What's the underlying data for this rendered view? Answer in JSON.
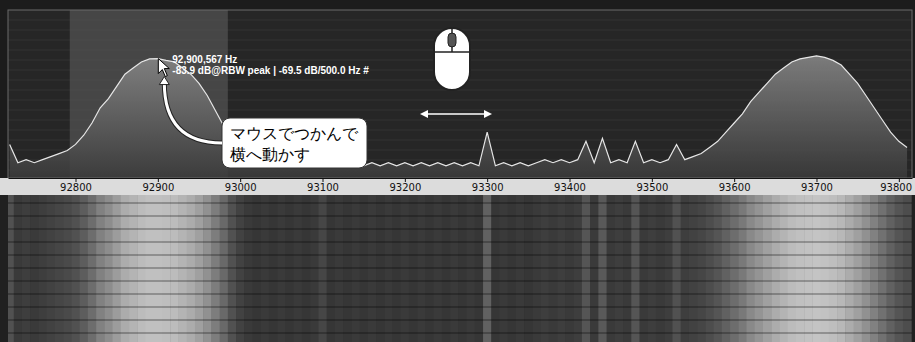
{
  "chart_data": {
    "type": "line",
    "color": "#e6e6e6",
    "tick_labels": "x",
    "xlim": [
      92718,
      93816
    ],
    "xticks": [
      92800,
      92900,
      93000,
      93100,
      93200,
      93300,
      93400,
      93500,
      93600,
      93700,
      93800
    ],
    "ylim": [
      -123,
      -68
    ],
    "selection": [
      92793,
      92985
    ],
    "x": [
      92720,
      92730,
      92740,
      92750,
      92760,
      92770,
      92780,
      92790,
      92800,
      92810,
      92820,
      92830,
      92840,
      92850,
      92860,
      92870,
      92880,
      92890,
      92900,
      92910,
      92920,
      92930,
      92940,
      92950,
      92960,
      92970,
      92980,
      92990,
      93000,
      93010,
      93020,
      93030,
      93040,
      93050,
      93060,
      93070,
      93080,
      93090,
      93100,
      93110,
      93120,
      93130,
      93140,
      93150,
      93160,
      93170,
      93180,
      93190,
      93200,
      93210,
      93220,
      93230,
      93240,
      93250,
      93260,
      93270,
      93280,
      93290,
      93300,
      93310,
      93320,
      93330,
      93340,
      93350,
      93360,
      93370,
      93380,
      93390,
      93400,
      93410,
      93420,
      93430,
      93440,
      93450,
      93460,
      93470,
      93480,
      93490,
      93500,
      93510,
      93520,
      93530,
      93540,
      93550,
      93560,
      93570,
      93580,
      93590,
      93600,
      93610,
      93620,
      93630,
      93640,
      93650,
      93660,
      93670,
      93680,
      93690,
      93700,
      93710,
      93720,
      93730,
      93740,
      93750,
      93760,
      93770,
      93780,
      93790,
      93800,
      93810
    ],
    "values": [
      -112,
      -118,
      -117,
      -118,
      -117,
      -116,
      -115,
      -114,
      -112,
      -109,
      -105,
      -100,
      -97,
      -93,
      -89,
      -87,
      -85,
      -84,
      -83.9,
      -84.5,
      -85,
      -87,
      -89,
      -92,
      -96,
      -101,
      -106,
      -112,
      -116,
      -118,
      -119,
      -118,
      -119,
      -118,
      -119,
      -118,
      -119,
      -118,
      -115,
      -119,
      -118,
      -119,
      -118,
      -119,
      -118,
      -119,
      -118,
      -119,
      -118,
      -119,
      -118,
      -119,
      -118,
      -119,
      -118,
      -119,
      -118,
      -119,
      -108,
      -119,
      -118,
      -119,
      -118,
      -119,
      -118,
      -117,
      -118,
      -117,
      -118,
      -117,
      -111,
      -118,
      -110,
      -118,
      -117,
      -118,
      -111,
      -118,
      -117,
      -118,
      -117,
      -112,
      -117,
      -116,
      -115,
      -113,
      -111,
      -108,
      -105,
      -102,
      -98,
      -95,
      -92,
      -89,
      -87,
      -85,
      -84,
      -83.5,
      -83,
      -83.5,
      -84.5,
      -86,
      -89,
      -92,
      -96,
      -100,
      -104,
      -108,
      -111,
      -113
    ],
    "cursor": {
      "x": 92900.567,
      "y": -83.9,
      "label": "92,900,567 Hz",
      "readout": "-83.9 dB@RBW peak | -69.5 dB/500.0 Hz #"
    },
    "callout": [
      "マウスでつかんで",
      "横へ動かす"
    ]
  }
}
